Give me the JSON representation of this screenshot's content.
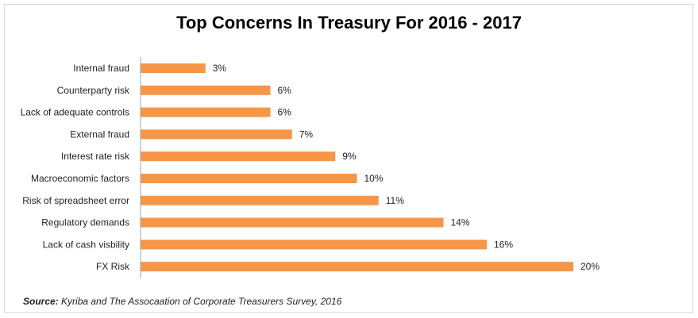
{
  "colors": {
    "bar": "#f79646",
    "axis": "#a6a6a6",
    "text": "#1f1f1f"
  },
  "chart_data": {
    "type": "bar",
    "orientation": "horizontal",
    "title": "Top Concerns In Treasury For 2016 - 2017",
    "categories": [
      "Internal fraud",
      "Counterparty risk",
      "Lack of adequate controls",
      "External fraud",
      "Interest rate risk",
      "Macroeconomic factors",
      "Risk of spreadsheet error",
      "Regulatory demands",
      "Lack of cash visbility",
      "FX Risk"
    ],
    "values": [
      3,
      6,
      6,
      7,
      9,
      10,
      11,
      14,
      16,
      20
    ],
    "data_labels": [
      "3%",
      "6%",
      "6%",
      "7%",
      "9%",
      "10%",
      "11%",
      "14%",
      "16%",
      "20%"
    ],
    "xlim": [
      0,
      20
    ],
    "xlabel": "",
    "ylabel": "",
    "grid": false,
    "legend": "none"
  },
  "source": {
    "label": "Source:",
    "text": " Kyriba  and The Assocaation  of Corporate Treasurers Survey, 2016"
  }
}
